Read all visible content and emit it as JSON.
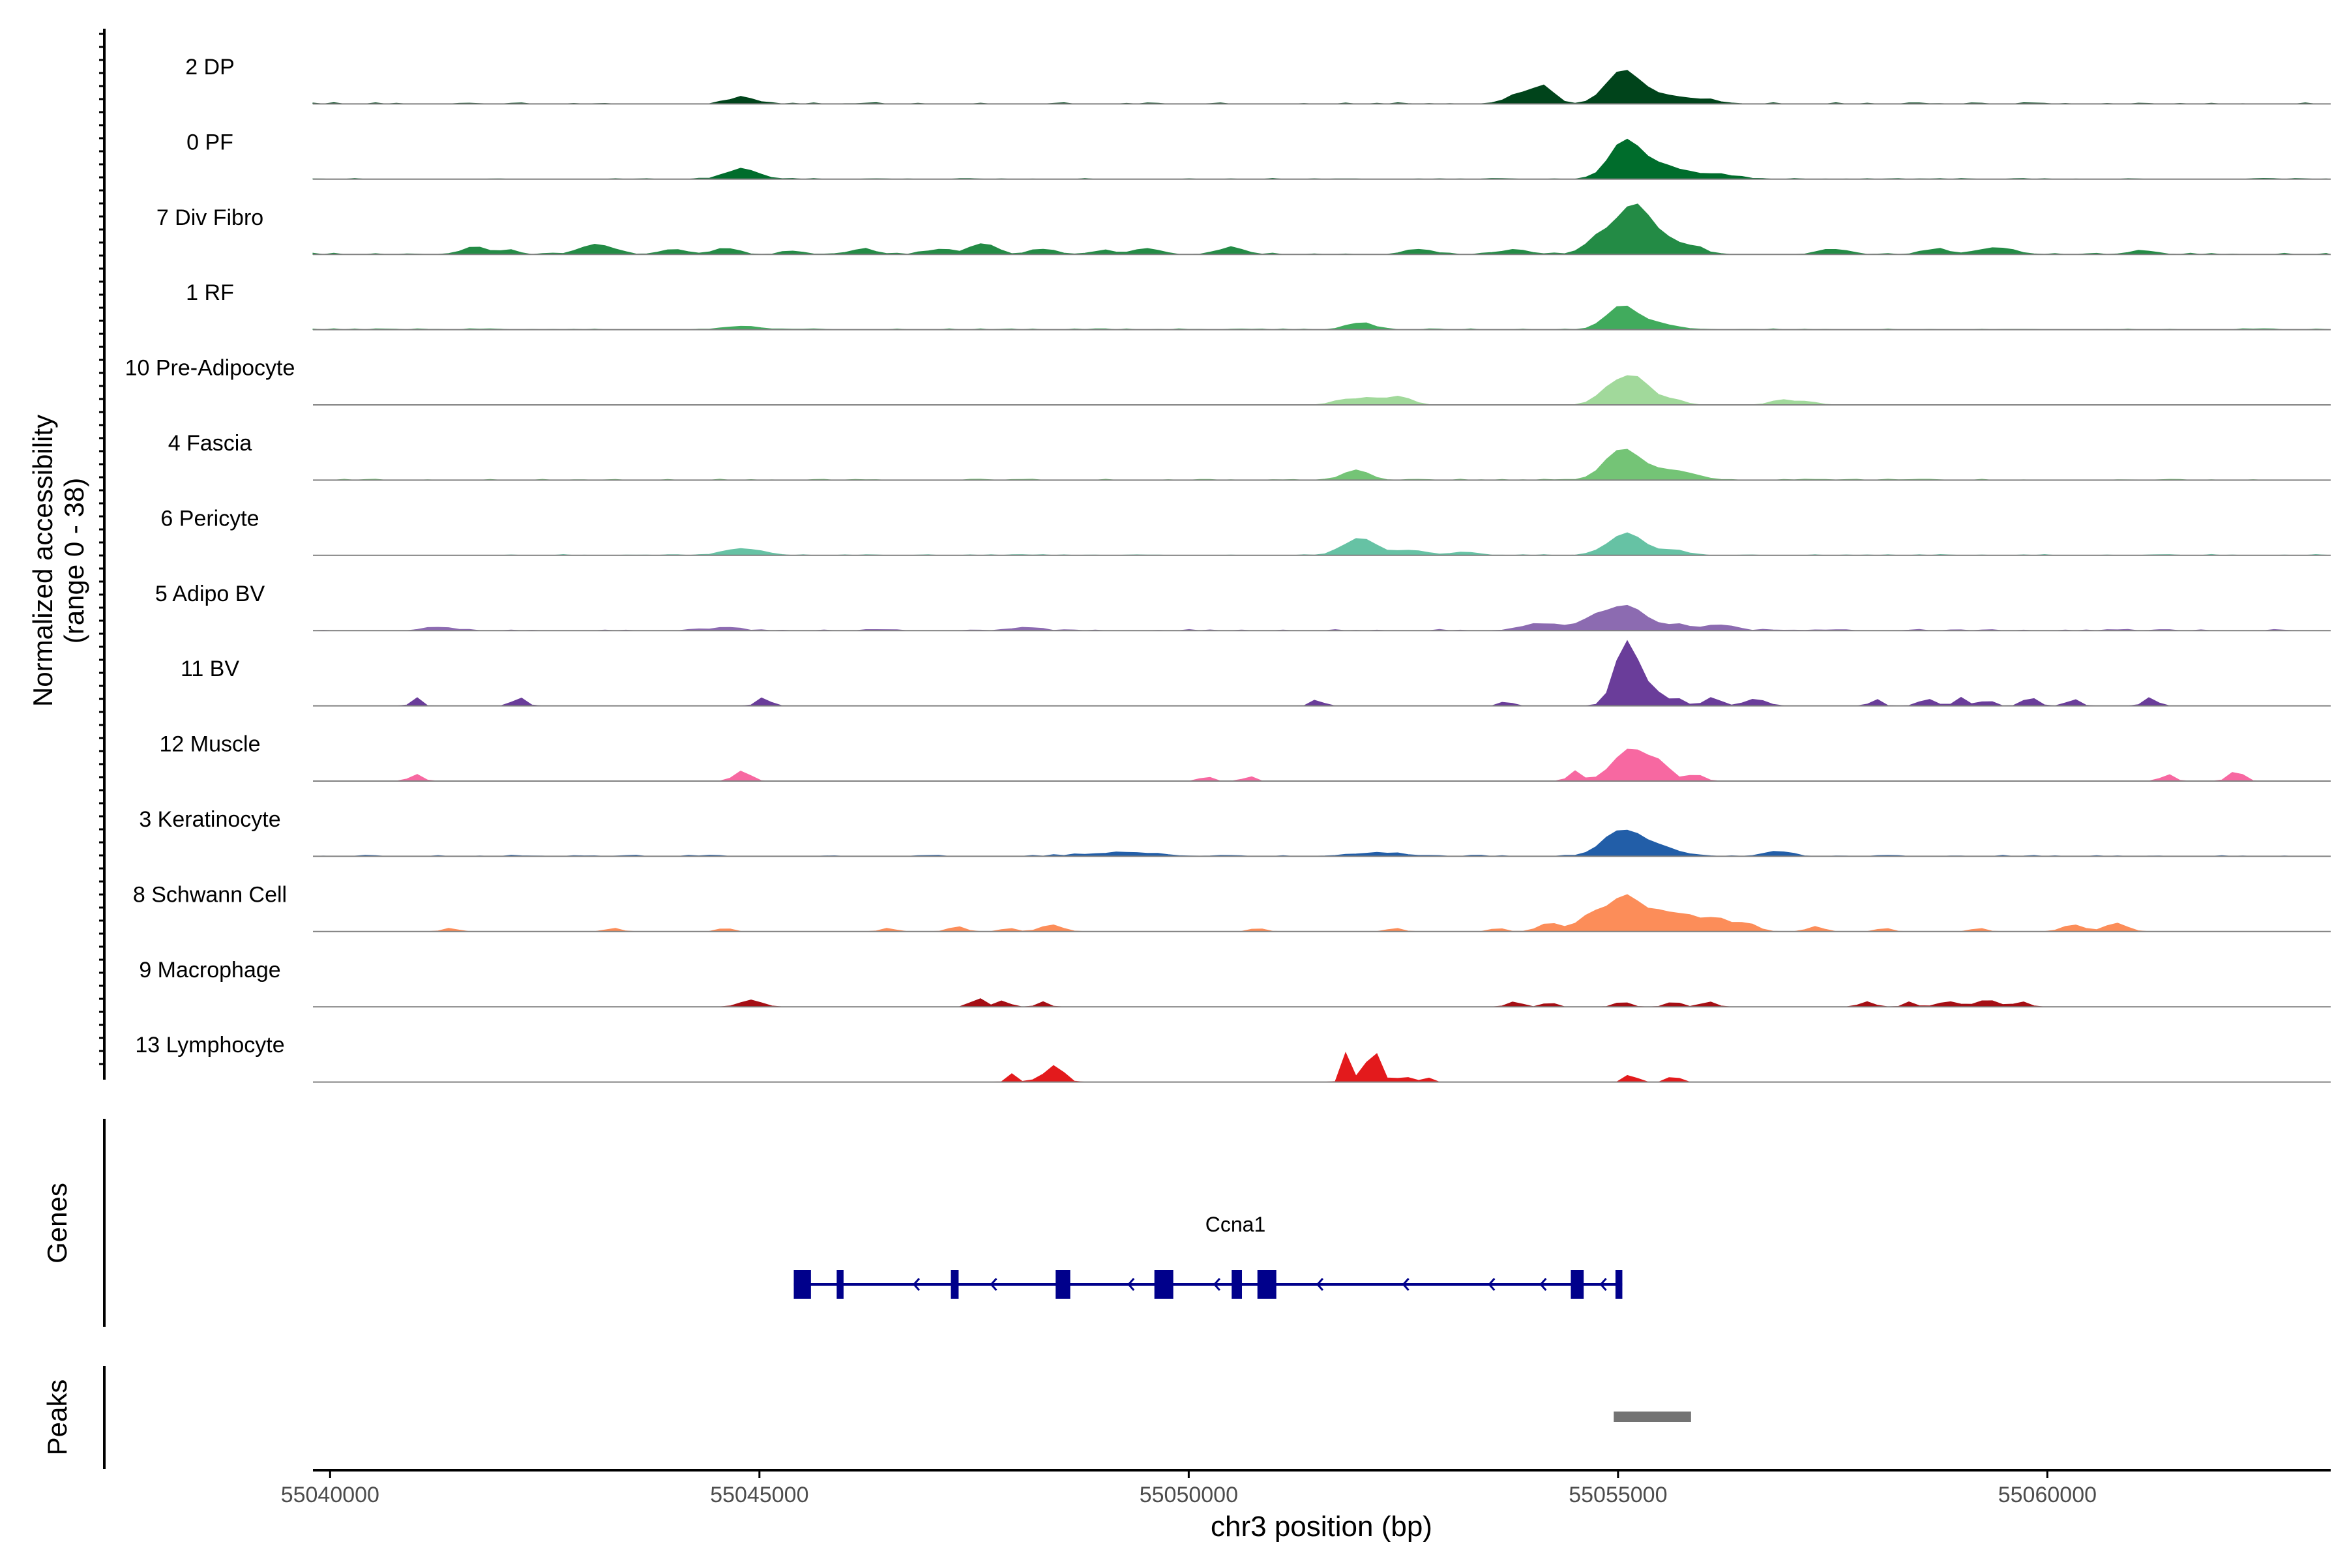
{
  "chart_data": {
    "type": "area",
    "title": "",
    "ylabel": "Normalized accessibility",
    "ylabel_range": "(range 0 - 38)",
    "y_range": [
      0,
      38
    ],
    "xlabel": "chr3 position (bp)",
    "xlim": [
      55039800,
      55063300
    ],
    "x_ticks": [
      55040000,
      55045000,
      55050000,
      55055000,
      55060000
    ],
    "x_tick_labels": [
      "55040000",
      "55045000",
      "55050000",
      "55055000",
      "55060000"
    ],
    "series": [
      {
        "name": "2 DP",
        "color": "#00441b",
        "peaks": [
          [
            55044800,
            4,
            150
          ],
          [
            55053900,
            6,
            180
          ],
          [
            55054150,
            8,
            120
          ],
          [
            55055050,
            19,
            190
          ],
          [
            55055500,
            5,
            250
          ],
          [
            55056000,
            2,
            200
          ]
        ],
        "noise": 0.6
      },
      {
        "name": "0 PF",
        "color": "#006d2c",
        "peaks": [
          [
            55044800,
            6,
            180
          ],
          [
            55055080,
            22,
            180
          ],
          [
            55055500,
            8,
            220
          ],
          [
            55056100,
            3,
            250
          ]
        ],
        "noise": 0.4
      },
      {
        "name": "7 Div Fibro",
        "color": "#238b45",
        "peaks": [
          [
            55041700,
            4,
            160
          ],
          [
            55042100,
            2,
            80
          ],
          [
            55043100,
            6,
            180
          ],
          [
            55044000,
            3,
            150
          ],
          [
            55044600,
            3,
            150
          ],
          [
            55045400,
            2,
            120
          ],
          [
            55046200,
            3,
            150
          ],
          [
            55047100,
            3,
            150
          ],
          [
            55047600,
            6,
            140
          ],
          [
            55048300,
            3,
            150
          ],
          [
            55049000,
            2,
            150
          ],
          [
            55049500,
            3,
            150
          ],
          [
            55050500,
            4,
            150
          ],
          [
            55052700,
            3,
            150
          ],
          [
            55053800,
            3,
            150
          ],
          [
            55054800,
            10,
            170
          ],
          [
            55055200,
            29,
            190
          ],
          [
            55055600,
            7,
            150
          ],
          [
            55055900,
            4,
            110
          ],
          [
            55057500,
            3,
            150
          ],
          [
            55058700,
            3,
            150
          ],
          [
            55059400,
            4,
            200
          ],
          [
            55061100,
            2,
            150
          ]
        ],
        "noise": 0.6
      },
      {
        "name": "1 RF",
        "color": "#41ab5d",
        "peaks": [
          [
            55044800,
            2,
            200
          ],
          [
            55052000,
            4,
            150
          ],
          [
            55055050,
            14,
            180
          ],
          [
            55055500,
            3,
            200
          ]
        ],
        "noise": 0.45
      },
      {
        "name": "10 Pre-Adipocyte",
        "color": "#a1d99b",
        "peaks": [
          [
            55051800,
            3,
            130
          ],
          [
            55052100,
            4,
            130
          ],
          [
            55052450,
            5,
            140
          ],
          [
            55054900,
            8,
            150
          ],
          [
            55055200,
            16,
            180
          ],
          [
            55055650,
            3,
            120
          ],
          [
            55056900,
            3,
            120
          ],
          [
            55057200,
            2,
            120
          ]
        ],
        "noise": 0.0
      },
      {
        "name": "4 Fascia",
        "color": "#74c476",
        "peaks": [
          [
            55051950,
            6,
            150
          ],
          [
            55055050,
            18,
            200
          ],
          [
            55055500,
            5,
            200
          ],
          [
            55055800,
            3,
            160
          ]
        ],
        "noise": 0.45
      },
      {
        "name": "6 Pericyte",
        "color": "#66c2a4",
        "peaks": [
          [
            55044800,
            4,
            200
          ],
          [
            55052000,
            10,
            190
          ],
          [
            55052600,
            3,
            150
          ],
          [
            55053200,
            2,
            150
          ],
          [
            55055100,
            13,
            200
          ],
          [
            55055650,
            3,
            150
          ]
        ],
        "noise": 0.4
      },
      {
        "name": "5 Adipo BV",
        "color": "#8c6bb1",
        "peaks": [
          [
            55041300,
            2,
            150
          ],
          [
            55044600,
            2,
            150
          ],
          [
            55048100,
            2,
            150
          ],
          [
            55054100,
            4,
            200
          ],
          [
            55054700,
            6,
            180
          ],
          [
            55055100,
            14,
            220
          ],
          [
            55055700,
            3,
            180
          ],
          [
            55056200,
            3,
            160
          ]
        ],
        "noise": 0.6
      },
      {
        "name": "11 BV",
        "color": "#6a3d9a",
        "peaks": [
          [
            55041000,
            5,
            50
          ],
          [
            55042200,
            5,
            70
          ],
          [
            55045050,
            5,
            70
          ],
          [
            55051500,
            4,
            60
          ],
          [
            55053700,
            3,
            60
          ],
          [
            55055100,
            39,
            130
          ],
          [
            55055400,
            9,
            120
          ],
          [
            55055700,
            4,
            80
          ],
          [
            55056100,
            5,
            90
          ],
          [
            55056600,
            4,
            120
          ],
          [
            55058000,
            4,
            60
          ],
          [
            55058600,
            4,
            90
          ],
          [
            55059000,
            5,
            70
          ],
          [
            55059300,
            4,
            60
          ],
          [
            55059800,
            5,
            80
          ],
          [
            55060300,
            4,
            70
          ],
          [
            55061200,
            5,
            70
          ]
        ],
        "noise": 0.0
      },
      {
        "name": "12 Muscle",
        "color": "#f768a1",
        "peaks": [
          [
            55041000,
            4,
            70
          ],
          [
            55044800,
            6,
            90
          ],
          [
            55050200,
            3,
            60
          ],
          [
            55050700,
            3,
            60
          ],
          [
            55054500,
            6,
            70
          ],
          [
            55055150,
            19,
            200
          ],
          [
            55055500,
            8,
            120
          ],
          [
            55055900,
            4,
            90
          ],
          [
            55061400,
            4,
            70
          ],
          [
            55062200,
            6,
            80
          ]
        ],
        "noise": 0.0
      },
      {
        "name": "3 Keratinocyte",
        "color": "#225ea8",
        "peaks": [
          [
            55049200,
            2,
            400
          ],
          [
            55052200,
            2,
            300
          ],
          [
            55055050,
            15,
            220
          ],
          [
            55055500,
            5,
            200
          ],
          [
            55056850,
            3,
            150
          ]
        ],
        "noise": 0.55
      },
      {
        "name": "8 Schwann Cell",
        "color": "#fc8d59",
        "peaks": [
          [
            55041400,
            2,
            80
          ],
          [
            55043300,
            2,
            80
          ],
          [
            55044600,
            2,
            80
          ],
          [
            55046500,
            2,
            80
          ],
          [
            55047300,
            3,
            90
          ],
          [
            55047900,
            2,
            80
          ],
          [
            55048400,
            4,
            120
          ],
          [
            55050800,
            2,
            80
          ],
          [
            55052400,
            2,
            80
          ],
          [
            55053600,
            2,
            80
          ],
          [
            55054200,
            5,
            120
          ],
          [
            55054700,
            10,
            160
          ],
          [
            55055100,
            21,
            180
          ],
          [
            55055500,
            10,
            140
          ],
          [
            55055800,
            9,
            140
          ],
          [
            55056150,
            8,
            140
          ],
          [
            55056500,
            5,
            120
          ],
          [
            55057300,
            3,
            90
          ],
          [
            55058100,
            2,
            80
          ],
          [
            55059200,
            2,
            80
          ],
          [
            55060300,
            4,
            120
          ],
          [
            55060800,
            5,
            120
          ]
        ],
        "noise": 0.0
      },
      {
        "name": "9 Macrophage",
        "color": "#a50f15",
        "peaks": [
          [
            55044900,
            4,
            120
          ],
          [
            55047550,
            5,
            80
          ],
          [
            55047850,
            4,
            60
          ],
          [
            55048300,
            3,
            60
          ],
          [
            55053800,
            3,
            80
          ],
          [
            55054200,
            3,
            60
          ],
          [
            55055050,
            3,
            80
          ],
          [
            55055650,
            3,
            80
          ],
          [
            55056050,
            3,
            80
          ],
          [
            55057900,
            3,
            80
          ],
          [
            55058400,
            3,
            60
          ],
          [
            55058850,
            3,
            120
          ],
          [
            55059300,
            4,
            120
          ],
          [
            55059700,
            3,
            80
          ]
        ],
        "noise": 0.0
      },
      {
        "name": "13 Lymphocyte",
        "color": "#e31a1c",
        "peaks": [
          [
            55047950,
            5,
            50
          ],
          [
            55048250,
            5,
            40
          ],
          [
            55048450,
            10,
            90
          ],
          [
            55051850,
            19,
            50
          ],
          [
            55052150,
            19,
            80
          ],
          [
            55052500,
            5,
            50
          ],
          [
            55052750,
            5,
            40
          ],
          [
            55055150,
            5,
            60
          ],
          [
            55055650,
            5,
            50
          ]
        ],
        "noise": 0.0
      }
    ],
    "genes": {
      "label": "Genes",
      "name": "Ccna1",
      "color": "#00008b",
      "strand": "-",
      "span": [
        55045400,
        55055050
      ],
      "exons": [
        [
          55045400,
          55045600
        ],
        [
          55045900,
          55045980
        ],
        [
          55047230,
          55047320
        ],
        [
          55048450,
          55048620
        ],
        [
          55049600,
          55049820
        ],
        [
          55050500,
          55050620
        ],
        [
          55050800,
          55051020
        ],
        [
          55054450,
          55054600
        ],
        [
          55054970,
          55055050
        ]
      ],
      "arrows": [
        55046800,
        55047700,
        55049300,
        55050300,
        55051500,
        55052500,
        55053500,
        55054100,
        55054800
      ]
    },
    "peaks_track": {
      "label": "Peaks",
      "color": "#737373",
      "regions": [
        [
          55054950,
          55055850
        ]
      ]
    }
  }
}
